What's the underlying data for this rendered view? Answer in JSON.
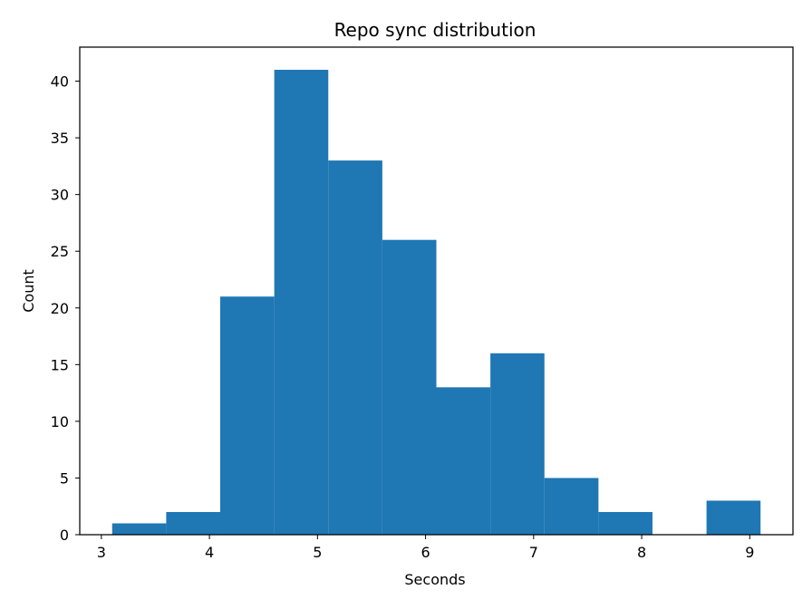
{
  "chart_data": {
    "type": "bar",
    "subtype": "histogram",
    "title": "Repo sync distribution",
    "xlabel": "Seconds",
    "ylabel": "Count",
    "bin_edges": [
      3.1,
      3.6,
      4.1,
      4.6,
      5.1,
      5.6,
      6.1,
      6.6,
      7.1,
      7.6,
      8.1,
      8.6,
      9.1
    ],
    "values": [
      1,
      2,
      21,
      41,
      33,
      26,
      13,
      16,
      5,
      2,
      0,
      3
    ],
    "xlim": [
      2.8,
      9.4
    ],
    "ylim": [
      0,
      43
    ],
    "xticks": [
      3,
      4,
      5,
      6,
      7,
      8,
      9
    ],
    "yticks": [
      0,
      5,
      10,
      15,
      20,
      25,
      30,
      35,
      40
    ],
    "bar_color": "#1f77b4",
    "grid": false,
    "legend": null
  }
}
